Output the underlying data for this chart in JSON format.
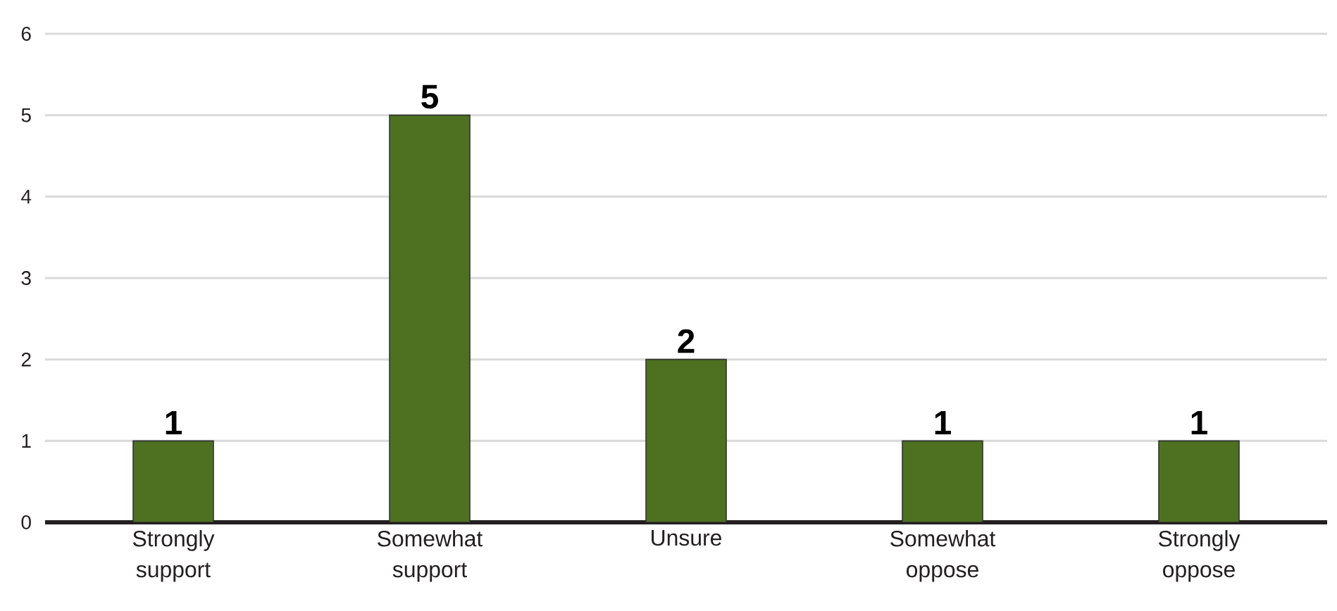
{
  "chart_data": {
    "type": "bar",
    "categories": [
      "Strongly support",
      "Somewhat support",
      "Unsure",
      "Somewhat oppose",
      "Strongly oppose"
    ],
    "values": [
      1,
      5,
      2,
      1,
      1
    ],
    "color": "#4d7120",
    "ylim": [
      0,
      6
    ],
    "yticks": [
      0,
      1,
      2,
      3,
      4,
      5,
      6
    ],
    "grid": "y",
    "data_labels": true
  }
}
